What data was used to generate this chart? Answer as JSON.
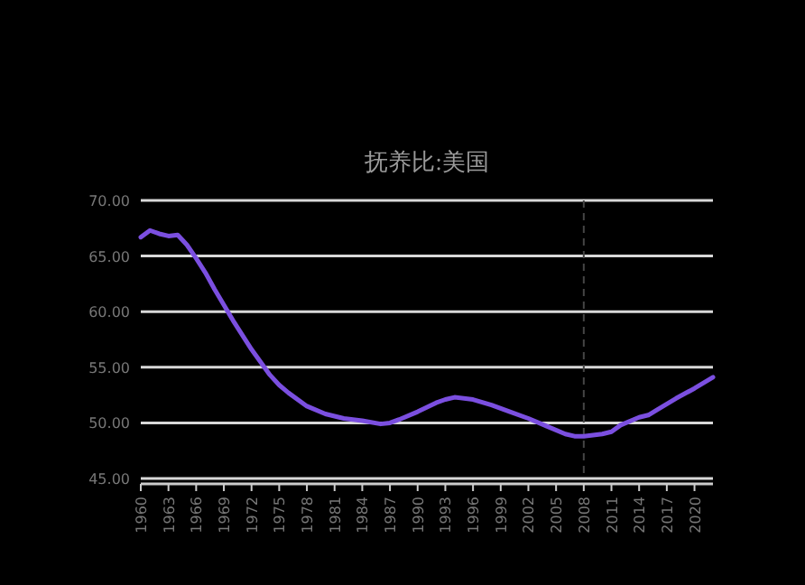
{
  "chart_data": {
    "type": "line",
    "title": "抚养比:美国",
    "x": [
      1960,
      1961,
      1962,
      1963,
      1964,
      1965,
      1966,
      1967,
      1968,
      1969,
      1970,
      1972,
      1974,
      1975,
      1976,
      1978,
      1980,
      1981,
      1982,
      1984,
      1986,
      1987,
      1988,
      1990,
      1992,
      1993,
      1994,
      1996,
      1998,
      2000,
      2002,
      2004,
      2006,
      2007,
      2008,
      2010,
      2011,
      2012,
      2014,
      2015,
      2016,
      2018,
      2020,
      2022
    ],
    "series": [
      {
        "color": "#7b4fe0",
        "values": [
          66.7,
          67.3,
          67.0,
          66.8,
          66.9,
          66.0,
          64.8,
          63.5,
          62.0,
          60.6,
          59.2,
          56.6,
          54.3,
          53.4,
          52.7,
          51.5,
          50.8,
          50.6,
          50.4,
          50.2,
          49.9,
          50.0,
          50.3,
          51.0,
          51.8,
          52.1,
          52.3,
          52.1,
          51.6,
          51.0,
          50.4,
          49.7,
          49.0,
          48.8,
          48.8,
          49.0,
          49.2,
          49.8,
          50.5,
          50.7,
          51.2,
          52.2,
          53.1,
          54.1
        ]
      }
    ],
    "xlim": [
      1960,
      2022
    ],
    "xticks": [
      1960,
      1963,
      1966,
      1969,
      1972,
      1975,
      1978,
      1981,
      1984,
      1987,
      1990,
      1993,
      1996,
      1999,
      2002,
      2005,
      2008,
      2011,
      2014,
      2017,
      2020
    ],
    "ylim": [
      45,
      70
    ],
    "yticks": [
      {
        "value": 45,
        "label": "45.00"
      },
      {
        "value": 50,
        "label": "50.00"
      },
      {
        "value": 55,
        "label": "55.00"
      },
      {
        "value": 60,
        "label": "60.00"
      },
      {
        "value": 65,
        "label": "65.00"
      },
      {
        "value": 70,
        "label": "70.00"
      }
    ],
    "grid": "y",
    "ref_lines": [
      {
        "axis": "x",
        "value": 2008,
        "color": "#444444",
        "line_style": "dashed"
      }
    ]
  }
}
